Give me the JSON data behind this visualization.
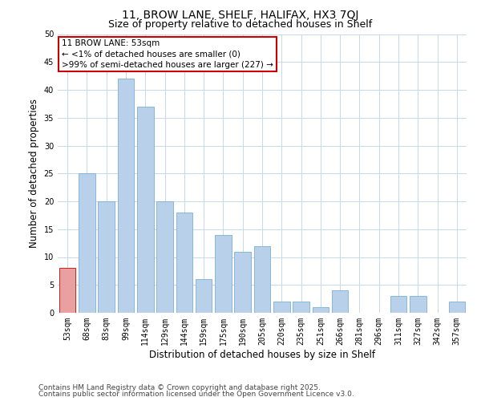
{
  "title_line1": "11, BROW LANE, SHELF, HALIFAX, HX3 7QJ",
  "title_line2": "Size of property relative to detached houses in Shelf",
  "xlabel": "Distribution of detached houses by size in Shelf",
  "ylabel": "Number of detached properties",
  "bar_labels": [
    "53sqm",
    "68sqm",
    "83sqm",
    "99sqm",
    "114sqm",
    "129sqm",
    "144sqm",
    "159sqm",
    "175sqm",
    "190sqm",
    "205sqm",
    "220sqm",
    "235sqm",
    "251sqm",
    "266sqm",
    "281sqm",
    "296sqm",
    "311sqm",
    "327sqm",
    "342sqm",
    "357sqm"
  ],
  "bar_values": [
    8,
    25,
    20,
    42,
    37,
    20,
    18,
    6,
    14,
    11,
    12,
    2,
    2,
    1,
    4,
    0,
    0,
    3,
    3,
    0,
    2
  ],
  "highlight_index": 0,
  "bar_color": "#b8d0ea",
  "highlight_color": "#e8a0a0",
  "bar_edge_color": "#7aafd4",
  "highlight_edge_color": "#cc0000",
  "ylim": [
    0,
    50
  ],
  "yticks": [
    0,
    5,
    10,
    15,
    20,
    25,
    30,
    35,
    40,
    45,
    50
  ],
  "annotation_title": "11 BROW LANE: 53sqm",
  "annotation_line1": "← <1% of detached houses are smaller (0)",
  "annotation_line2": ">99% of semi-detached houses are larger (227) →",
  "annotation_box_color": "#ffffff",
  "annotation_border_color": "#cc0000",
  "footer_line1": "Contains HM Land Registry data © Crown copyright and database right 2025.",
  "footer_line2": "Contains public sector information licensed under the Open Government Licence v3.0.",
  "background_color": "#ffffff",
  "grid_color": "#c8d8ec",
  "title_fontsize": 10,
  "subtitle_fontsize": 9,
  "axis_label_fontsize": 8.5,
  "tick_fontsize": 7,
  "annotation_fontsize": 7.5,
  "footer_fontsize": 6.5
}
